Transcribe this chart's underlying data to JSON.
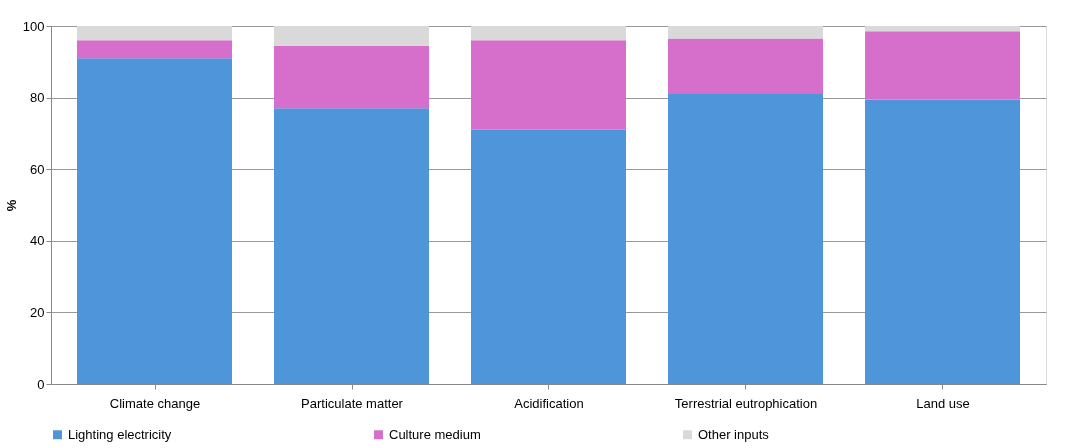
{
  "chart_data": {
    "type": "bar",
    "stacked": true,
    "ylabel": "%",
    "categories": [
      "Climate change",
      "Particulate matter",
      "Acidification",
      "Terrestrial eutrophication",
      "Land use"
    ],
    "series": [
      {
        "name": "Lighting electricity",
        "color": "#4f95d9",
        "values": [
          91,
          77,
          71,
          81,
          79.5
        ]
      },
      {
        "name": "Culture medium",
        "color": "#d66ecb",
        "values": [
          5,
          17.5,
          25,
          15.5,
          19
        ]
      },
      {
        "name": "Other inputs",
        "color": "#d9d9d9",
        "values": [
          4,
          5.5,
          4,
          3.5,
          1.5
        ]
      }
    ],
    "ylim": [
      0,
      100
    ],
    "yticks": [
      0,
      20,
      40,
      60,
      80,
      100
    ],
    "grid": "y",
    "legend": "bottom"
  }
}
